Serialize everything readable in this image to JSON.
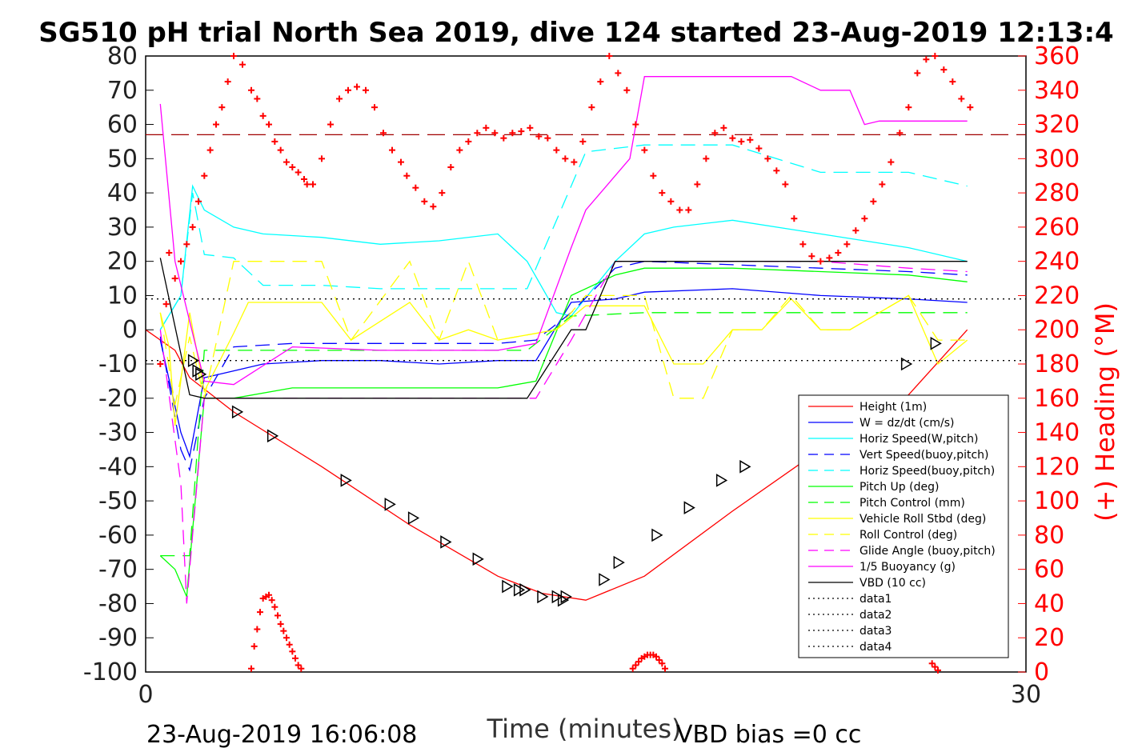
{
  "chart_data": {
    "type": "line",
    "title": "SG510 pH trial North Sea 2019, dive 124 started 23-Aug-2019 12:13:4",
    "xlabel": "Time (minutes)",
    "ylabel_right": "(+) Heading (°M)",
    "xlim": [
      0,
      30
    ],
    "ylim": [
      -100,
      80
    ],
    "ylim_right": [
      0,
      360
    ],
    "x_ticks": [
      "0",
      "30"
    ],
    "y_ticks": [
      "80",
      "70",
      "60",
      "50",
      "40",
      "30",
      "20",
      "10",
      "0",
      "-10",
      "-20",
      "-30",
      "-40",
      "-50",
      "-60",
      "-70",
      "-80",
      "-90",
      "-100"
    ],
    "y_ticks_right": [
      "360",
      "340",
      "320",
      "300",
      "280",
      "260",
      "240",
      "220",
      "200",
      "180",
      "160",
      "140",
      "120",
      "100",
      "80",
      "60",
      "40",
      "20",
      "0"
    ],
    "footer_left": "23-Aug-2019 16:06:08",
    "footer_right": "VBD bias =0 cc",
    "colors": {
      "height": "#ff0000",
      "w": "#0000ff",
      "horiz_w": "#00ffff",
      "vert_buoy": "#0000ff",
      "horiz_buoy": "#00ffff",
      "pitch": "#00ff00",
      "pitch_ctl": "#00ff00",
      "roll": "#ffff00",
      "roll_ctl": "#ffff00",
      "glide": "#ff00ff",
      "buoy": "#ff00ff",
      "vbd": "#000000",
      "heading": "#ff0000",
      "ref_dash": "#a00000",
      "axis_right": "#ff0000"
    },
    "series": [
      {
        "key": "height",
        "name": "Height (1m)",
        "style": "solid",
        "x": [
          0,
          1,
          1.5,
          3,
          6,
          9,
          12,
          13.5,
          15,
          17,
          20,
          23,
          26,
          28
        ],
        "y": [
          0,
          -6,
          -14,
          -24,
          -40,
          -57,
          -72,
          -77,
          -79,
          -72,
          -53,
          -35,
          -19,
          0
        ]
      },
      {
        "key": "w",
        "name": "W = dz/dt (cm/s)",
        "style": "solid",
        "x": [
          0.5,
          1.2,
          1.5,
          2,
          3,
          4,
          6,
          8,
          10,
          12,
          13.3,
          14.5,
          16,
          17,
          20,
          23,
          26,
          28
        ],
        "y": [
          -3,
          -30,
          -37,
          -14,
          -12,
          -10,
          -9,
          -9,
          -10,
          -9,
          -9,
          8,
          9,
          11,
          12,
          10,
          9,
          8
        ]
      },
      {
        "key": "horiz_w",
        "name": "Horiz Speed(W,pitch)",
        "style": "solid",
        "x": [
          0.5,
          1.2,
          1.6,
          2,
          3,
          4,
          6,
          8,
          10,
          12,
          13,
          14,
          14.5,
          16,
          17,
          18,
          20,
          23,
          26,
          28
        ],
        "y": [
          0,
          10,
          42,
          35,
          30,
          28,
          27,
          25,
          26,
          28,
          20,
          5,
          4,
          20,
          28,
          30,
          32,
          28,
          24,
          20
        ]
      },
      {
        "key": "vert_buoy",
        "name": "Vert Speed(buoy,pitch)",
        "style": "dash",
        "x": [
          0.5,
          1.2,
          1.5,
          2,
          3,
          5,
          8,
          12,
          13.3,
          14.5,
          16,
          17,
          20,
          23,
          26,
          28
        ],
        "y": [
          -2,
          -35,
          -41,
          -20,
          -5,
          -4,
          -4,
          -4,
          -3,
          5,
          18,
          20,
          19,
          18,
          17,
          16
        ]
      },
      {
        "key": "horiz_buoy",
        "name": "Horiz Speed(buoy,pitch)",
        "style": "dash",
        "x": [
          0.5,
          1.2,
          1.6,
          2,
          3,
          4,
          6,
          8,
          10,
          12,
          13,
          14.5,
          15,
          16,
          17,
          20,
          23,
          26,
          28
        ],
        "y": [
          0,
          10,
          40,
          22,
          21,
          13,
          13,
          12,
          12,
          12,
          12,
          42,
          52,
          53,
          54,
          54,
          46,
          46,
          42
        ]
      },
      {
        "key": "pitch",
        "name": "Pitch Up (deg)",
        "style": "solid",
        "x": [
          0.5,
          1,
          1.4,
          2,
          3,
          5,
          8,
          12,
          13.3,
          14.5,
          16,
          17,
          20,
          23,
          26,
          28
        ],
        "y": [
          -66,
          -70,
          -78,
          -20,
          -20,
          -17,
          -17,
          -17,
          -15,
          10,
          16,
          18,
          18,
          17,
          16,
          14
        ]
      },
      {
        "key": "pitch_ctl",
        "name": "Pitch Control (mm)",
        "style": "dash",
        "x": [
          0.5,
          1.5,
          2,
          8,
          13,
          14.5,
          17,
          20,
          23,
          28
        ],
        "y": [
          -66,
          -66,
          -6,
          -6,
          -6,
          4,
          5,
          5,
          5,
          5
        ]
      },
      {
        "key": "roll",
        "name": "Vehicle Roll Stbd (deg)",
        "style": "solid",
        "x": [
          0.5,
          0.8,
          1,
          1.5,
          2,
          3,
          3.5,
          4,
          6,
          7,
          9,
          10,
          11,
          12,
          14,
          15,
          17,
          18,
          19,
          20,
          21,
          22,
          23,
          24,
          26,
          27,
          28
        ],
        "y": [
          5,
          -5,
          -28,
          5,
          -18,
          -1,
          8,
          8,
          8,
          -3,
          8,
          -3,
          0,
          -3,
          0,
          7,
          7,
          -10,
          -10,
          0,
          0,
          9,
          0,
          0,
          10,
          -10,
          -3
        ]
      },
      {
        "key": "roll_ctl",
        "name": "Roll Control (deg)",
        "style": "dash",
        "x": [
          0.5,
          1,
          1.5,
          2,
          3,
          4,
          6,
          7,
          9,
          10,
          11,
          12,
          14,
          15,
          17,
          18,
          19,
          20,
          21,
          22,
          23,
          24,
          26,
          27,
          28
        ],
        "y": [
          5,
          -22,
          -2,
          -20,
          20,
          20,
          20,
          -3,
          20,
          -3,
          20,
          -3,
          0,
          10,
          10,
          -20,
          -20,
          0,
          0,
          10,
          0,
          0,
          10,
          -3,
          -3
        ]
      },
      {
        "key": "glide",
        "name": "Glide Angle (buoy,pitch)",
        "style": "dash",
        "x": [
          0.5,
          1.2,
          1.4,
          2,
          3,
          5,
          8,
          12,
          13.3,
          14.5,
          16,
          17,
          20,
          23,
          26,
          28
        ],
        "y": [
          0,
          -45,
          -80,
          -20,
          -20,
          -20,
          -20,
          -20,
          -20,
          -3,
          20,
          20,
          20,
          20,
          18,
          17
        ]
      },
      {
        "key": "buoy",
        "name": "1/5 Buoyancy (g)",
        "style": "solid",
        "x": [
          0.5,
          1,
          2,
          3,
          5,
          8,
          12,
          13.3,
          14.5,
          15,
          16.5,
          17,
          18,
          20,
          22,
          23,
          24,
          24.5,
          25,
          28
        ],
        "y": [
          66,
          20,
          -15,
          -16,
          -5,
          -6,
          -6,
          -4,
          24,
          35,
          50,
          74,
          74,
          74,
          74,
          70,
          70,
          60,
          61,
          61
        ]
      },
      {
        "key": "vbd",
        "name": "VBD (10 cc)",
        "style": "solid",
        "x": [
          0.5,
          1.5,
          2,
          6,
          8,
          12,
          13,
          14.5,
          15,
          16,
          17,
          18,
          20,
          23,
          26,
          28
        ],
        "y": [
          21,
          -19,
          -20,
          -20,
          -20,
          -20,
          -20,
          0,
          0,
          20,
          20,
          20,
          20,
          20,
          20,
          20
        ]
      },
      {
        "key": "data1",
        "name": "data1",
        "style": "dot",
        "x": [],
        "y": []
      },
      {
        "key": "data2",
        "name": "data2",
        "style": "dot",
        "x": [],
        "y": []
      },
      {
        "key": "data3",
        "name": "data3",
        "style": "dot",
        "x": [
          0,
          30
        ],
        "y": [
          9,
          9
        ]
      },
      {
        "key": "data4",
        "name": "data4",
        "style": "dot",
        "x": [
          0,
          30
        ],
        "y": [
          -9,
          -9
        ]
      }
    ],
    "heading": {
      "name": "Heading",
      "x": [
        0.5,
        0.7,
        0.8,
        1,
        1.2,
        1.4,
        1.6,
        1.8,
        2,
        2.2,
        2.4,
        2.6,
        2.8,
        3,
        3.3,
        3.6,
        3.8,
        4,
        4.2,
        4.4,
        4.6,
        4.8,
        5.0,
        5.2,
        5.4,
        5.5,
        5.7,
        6,
        6.3,
        6.6,
        6.9,
        7.2,
        7.5,
        7.8,
        8.1,
        8.4,
        8.7,
        8.9,
        9.2,
        9.5,
        9.8,
        10.1,
        10.4,
        10.7,
        11,
        11.3,
        11.6,
        11.9,
        12.2,
        12.5,
        12.8,
        13.1,
        13.4,
        13.7,
        14,
        14.3,
        14.6,
        14.9,
        15.2,
        15.5,
        15.8,
        16.1,
        16.4,
        16.7,
        17,
        17.3,
        17.6,
        17.9,
        18.2,
        18.5,
        18.8,
        19.1,
        19.4,
        19.7,
        20,
        20.3,
        20.6,
        20.9,
        21.2,
        21.5,
        21.8,
        22.1,
        22.4,
        22.7,
        23,
        23.3,
        23.6,
        23.9,
        24.2,
        24.5,
        24.8,
        25.1,
        25.4,
        25.7,
        26,
        26.3,
        26.6,
        26.9,
        27.2,
        27.5,
        27.8,
        28.1
      ],
      "y": [
        180,
        215,
        245,
        230,
        240,
        250,
        260,
        275,
        290,
        305,
        320,
        330,
        345,
        360,
        355,
        340,
        335,
        325,
        320,
        310,
        305,
        298,
        295,
        292,
        288,
        285,
        285,
        300,
        320,
        335,
        340,
        342,
        340,
        330,
        315,
        305,
        298,
        290,
        283,
        275,
        272,
        280,
        295,
        305,
        310,
        315,
        318,
        315,
        312,
        315,
        316,
        318,
        313,
        312,
        305,
        300,
        298,
        310,
        330,
        345,
        360,
        350,
        340,
        320,
        305,
        290,
        280,
        275,
        270,
        270,
        285,
        300,
        315,
        318,
        312,
        310,
        311,
        306,
        300,
        293,
        285,
        265,
        250,
        243,
        240,
        242,
        245,
        250,
        258,
        265,
        275,
        285,
        298,
        315,
        330,
        350,
        358,
        360,
        352,
        345,
        335,
        330
      ]
    },
    "heading_low": {
      "x": [
        3.6,
        3.7,
        3.8,
        3.9,
        4.0,
        4.1,
        4.2,
        4.3,
        4.4,
        4.5,
        4.6,
        4.7,
        4.8,
        4.9,
        5.0,
        5.1,
        5.2,
        5.3,
        16.6,
        16.7,
        16.8,
        16.9,
        17.0,
        17.1,
        17.2,
        17.3,
        17.4,
        17.5,
        17.6,
        17.7,
        26.8,
        26.9,
        27.0
      ],
      "y": [
        2,
        15,
        25,
        35,
        43,
        44,
        45,
        42,
        38,
        33,
        28,
        24,
        20,
        16,
        12,
        8,
        4,
        2,
        2,
        4,
        6,
        8,
        9,
        10,
        10,
        10,
        9,
        7,
        5,
        2,
        5,
        3,
        1
      ]
    },
    "markers": {
      "x": [
        1.6,
        1.75,
        1.85,
        3.1,
        4.3,
        6.8,
        8.3,
        9.1,
        10.2,
        11.3,
        12.3,
        12.7,
        12.9,
        13.5,
        14.0,
        14.2,
        14.3,
        15.6,
        16.1,
        17.4,
        18.5,
        19.6,
        20.4,
        25.9,
        26.9
      ],
      "y": [
        -9,
        -12,
        -13,
        -24,
        -31,
        -44,
        -51,
        -55,
        -62,
        -67,
        -75,
        -76,
        -76,
        -78,
        -78,
        -79,
        -78,
        -73,
        -68,
        -60,
        -52,
        -44,
        -40,
        -10,
        -4
      ]
    },
    "ref_line": {
      "y": 57
    }
  }
}
